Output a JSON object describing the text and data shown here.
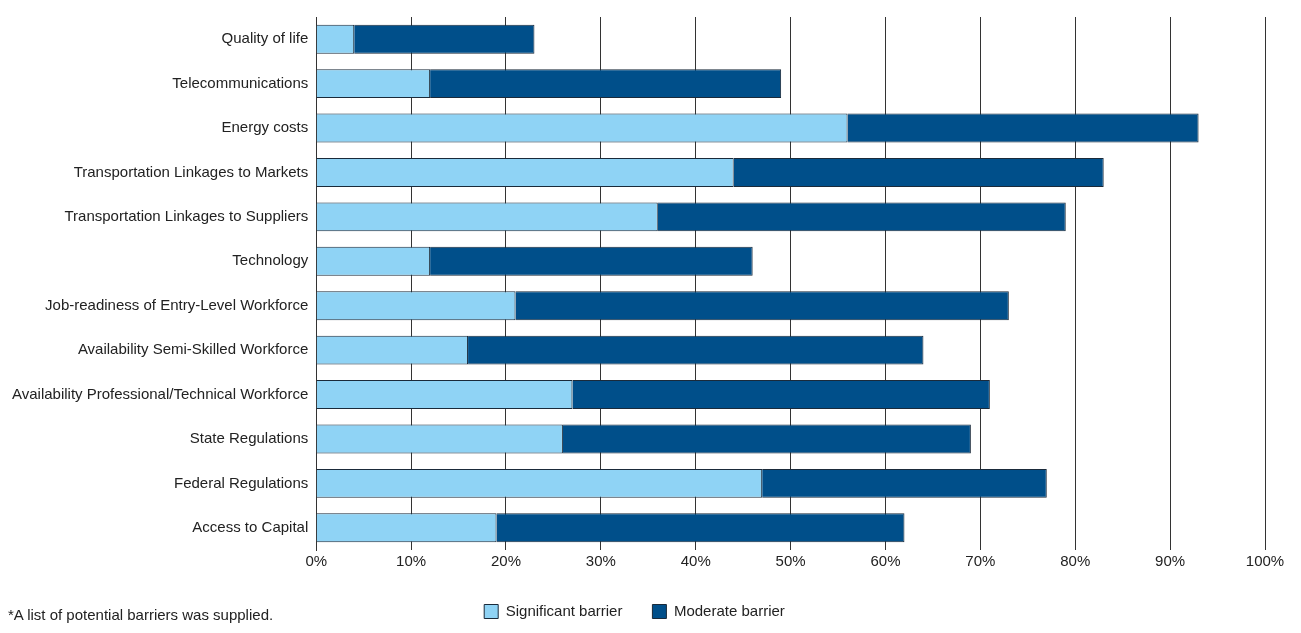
{
  "chart_data": {
    "type": "bar",
    "orientation": "horizontal",
    "stacked": true,
    "categories": [
      "Quality of life",
      "Telecommunications",
      "Energy costs",
      "Transportation Linkages to Markets",
      "Transportation Linkages to Suppliers",
      "Technology",
      "Job-readiness of Entry-Level Workforce",
      "Availability Semi-Skilled Workforce",
      "Availability Professional/Technical Workforce",
      "State Regulations",
      "Federal Regulations",
      "Access to Capital"
    ],
    "series": [
      {
        "name": "Significant barrier",
        "color": "#8fd3f5",
        "values": [
          4,
          12,
          56,
          44,
          36,
          12,
          21,
          16,
          27,
          26,
          47,
          19
        ]
      },
      {
        "name": "Moderate barrier",
        "color": "#004f8a",
        "values": [
          19,
          37,
          37,
          39,
          43,
          34,
          52,
          48,
          44,
          43,
          30,
          43
        ]
      }
    ],
    "xlim": [
      0,
      100
    ],
    "xticks": [
      {
        "value": 0,
        "label": "0%"
      },
      {
        "value": 10,
        "label": "10%"
      },
      {
        "value": 20,
        "label": "20%"
      },
      {
        "value": 30,
        "label": "30%"
      },
      {
        "value": 40,
        "label": "40%"
      },
      {
        "value": 50,
        "label": "50%"
      },
      {
        "value": 60,
        "label": "60%"
      },
      {
        "value": 70,
        "label": "70%"
      },
      {
        "value": 80,
        "label": "80%"
      },
      {
        "value": 90,
        "label": "90%"
      },
      {
        "value": 100,
        "label": "100%"
      }
    ],
    "grid": "x",
    "legend": "bottom",
    "annotations": [
      "*A list of potential barriers was supplied."
    ]
  }
}
